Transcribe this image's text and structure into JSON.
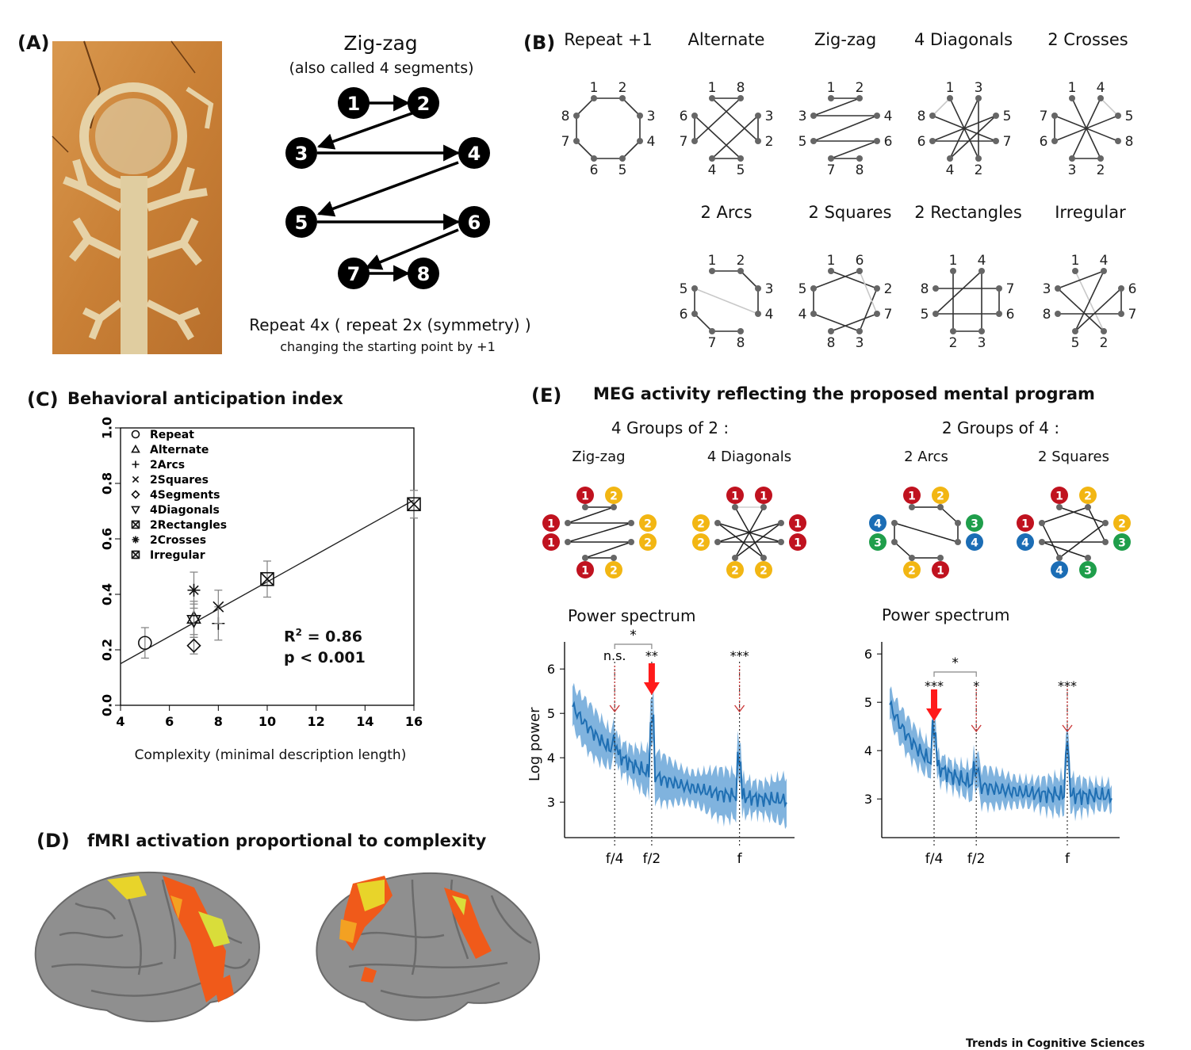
{
  "panel_a": {
    "label": "(A)",
    "title": "Zig-zag",
    "subtitle": "(also called 4 segments)",
    "nodes": [
      "1",
      "2",
      "3",
      "4",
      "5",
      "6",
      "7",
      "8"
    ],
    "caption_line1": "Repeat 4x ( repeat 2x (symmetry) )",
    "caption_line2": "changing the starting point by +1"
  },
  "panel_b": {
    "label": "(B)",
    "sequences_row1": [
      "Repeat +1",
      "Alternate",
      "Zig-zag",
      "4 Diagonals",
      "2 Crosses"
    ],
    "sequences_row2": [
      "2 Arcs",
      "2 Squares",
      "2 Rectangles",
      "Irregular"
    ]
  },
  "panel_c": {
    "label": "(C)",
    "title": "Behavioral anticipation index",
    "xlabel": "Complexity (minimal description length)",
    "stats_r2": "R",
    "stats_r2_sup": "2",
    "stats_r2_val": " = 0.86",
    "stats_p": "p < 0.001"
  },
  "chart_data": {
    "type": "scatter",
    "xlabel": "Complexity (minimal description length)",
    "ylabel": "",
    "xlim": [
      4,
      16
    ],
    "ylim": [
      0.0,
      1.0
    ],
    "xticks": [
      "4",
      "6",
      "8",
      "10",
      "12",
      "14",
      "16"
    ],
    "yticks": [
      "0.0",
      "0.2",
      "0.4",
      "0.6",
      "0.8",
      "1.0"
    ],
    "legend_position": "top-left",
    "series": [
      {
        "name": "Repeat",
        "marker": "circle",
        "x": 5,
        "y": 0.225,
        "err": 0.055
      },
      {
        "name": "Alternate",
        "marker": "triangle-up",
        "x": 7,
        "y": 0.315,
        "err": 0.06
      },
      {
        "name": "2Arcs",
        "marker": "plus",
        "x": 8,
        "y": 0.295,
        "err": 0.06
      },
      {
        "name": "2Squares",
        "marker": "x",
        "x": 8,
        "y": 0.355,
        "err": 0.06
      },
      {
        "name": "4Segments",
        "marker": "diamond",
        "x": 7,
        "y": 0.215,
        "err": 0.03
      },
      {
        "name": "4Diagonals",
        "marker": "triangle-down",
        "x": 7,
        "y": 0.305,
        "err": 0.06
      },
      {
        "name": "2Rectangles",
        "marker": "square-x",
        "x": 10,
        "y": 0.455,
        "err": 0.065
      },
      {
        "name": "2Crosses",
        "marker": "asterisk",
        "x": 7,
        "y": 0.415,
        "err": 0.065
      },
      {
        "name": "Irregular",
        "marker": "square-xx",
        "x": 16,
        "y": 0.725,
        "err": 0.05
      }
    ],
    "fit_line": {
      "x": [
        4,
        16
      ],
      "y": [
        0.15,
        0.74
      ]
    }
  },
  "panel_d": {
    "label": "(D)",
    "title": "fMRI activation proportional to complexity"
  },
  "panel_e": {
    "label": "(E)",
    "title": "MEG activity reflecting the proposed mental program",
    "group_left": "4 Groups of 2 :",
    "group_right": "2 Groups of 4 :",
    "seq_zigzag": "Zig-zag",
    "seq_4diag": "4 Diagonals",
    "seq_2arcs": "2 Arcs",
    "seq_2squares": "2 Squares",
    "power_title": "Power spectrum",
    "ylabel": "Log power",
    "left_spectrum": {
      "yticks": [
        "6",
        "5",
        "4",
        "3"
      ],
      "xticks": [
        "f/4",
        "f/2",
        "f"
      ],
      "sig": [
        "n.s.",
        "**",
        "***"
      ],
      "bracket": "*"
    },
    "right_spectrum": {
      "yticks": [
        "6",
        "5",
        "4",
        "3"
      ],
      "xticks": [
        "f/4",
        "f/2",
        "f"
      ],
      "sig": [
        "***",
        "*",
        "***"
      ],
      "bracket": "*"
    },
    "colors": {
      "red": "#c0121f",
      "yellow": "#f2b613",
      "blue": "#1b6db5",
      "green": "#1f9e4b",
      "spectrum": "#1f6fb3",
      "band": "#6aa6d8"
    }
  },
  "footer": "Trends in Cognitive Sciences"
}
